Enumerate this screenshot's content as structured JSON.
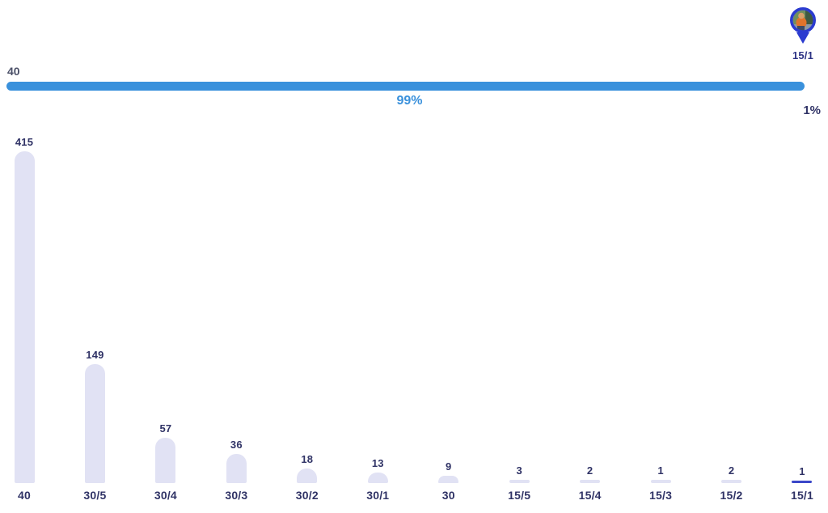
{
  "marker": {
    "icon": "map-pin-avatar-icon",
    "label": "15/1"
  },
  "progress": {
    "left_label": "40",
    "percent": 99,
    "percent_label": "99%",
    "remainder_label": "1%"
  },
  "colors": {
    "progress_blue": "#3A91DC",
    "bar_fill": "#E1E2F4",
    "bar_highlight": "#3A47C8",
    "label_navy": "#303366",
    "muted_label": "#4B5068",
    "pin_blue": "#2B3BD0",
    "pin_label_blue": "#2C3284"
  },
  "chart_data": {
    "type": "bar",
    "title": "",
    "xlabel": "",
    "ylabel": "",
    "categories": [
      "40",
      "30/5",
      "30/4",
      "30/3",
      "30/2",
      "30/1",
      "30",
      "15/5",
      "15/4",
      "15/3",
      "15/2",
      "15/1"
    ],
    "values": [
      415,
      149,
      57,
      36,
      18,
      13,
      9,
      3,
      2,
      1,
      2,
      1
    ],
    "highlighted_category": "15/1",
    "value_labels_shown": true,
    "grid": false,
    "legend": false,
    "ylim": [
      0,
      430
    ]
  }
}
